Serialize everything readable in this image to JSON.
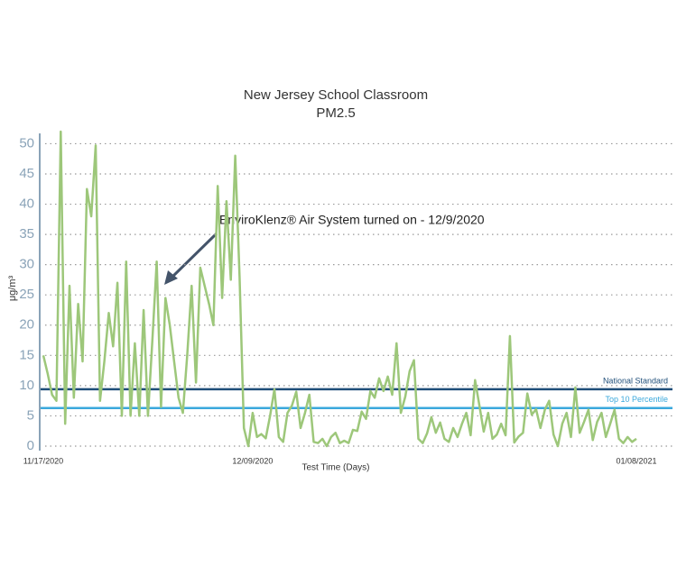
{
  "chart_data": {
    "type": "line",
    "title": "New Jersey School Classroom",
    "subtitle": "PM2.5",
    "x_label": "Test Time (Days)",
    "y_label": "μg/m³",
    "annotation": "EnviroKlenz® Air System turned on - 12/9/2020",
    "categories": [
      "11/17/2020",
      null,
      null,
      null,
      null,
      null,
      null,
      null,
      null,
      null,
      null,
      null,
      null,
      null,
      null,
      null,
      null,
      null,
      null,
      null,
      null,
      null,
      null,
      null,
      null,
      null,
      null,
      null,
      null,
      null,
      null,
      null,
      null,
      null,
      null,
      null,
      null,
      null,
      null,
      null,
      null,
      null,
      null,
      null,
      null,
      null,
      null,
      null,
      "12/09/2020",
      null,
      null,
      null,
      null,
      null,
      null,
      null,
      null,
      null,
      null,
      null,
      null,
      null,
      null,
      null,
      null,
      null,
      null,
      null,
      null,
      null,
      null,
      null,
      null,
      null,
      null,
      null,
      null,
      null,
      null,
      null,
      null,
      null,
      null,
      null,
      null,
      null,
      null,
      null,
      null,
      null,
      null,
      null,
      null,
      null,
      null,
      null,
      null,
      null,
      null,
      null,
      null,
      null,
      null,
      null,
      null,
      null,
      null,
      null,
      null,
      null,
      null,
      null,
      null,
      null,
      null,
      null,
      null,
      null,
      null,
      null,
      null,
      null,
      null,
      null,
      null,
      null,
      null,
      null,
      null,
      null,
      null,
      null,
      null,
      null,
      null,
      null,
      "01/08/2021"
    ],
    "series": [
      {
        "name": "PM2.5",
        "color": "#9dc77a",
        "values": [
          15,
          12,
          8.5,
          7.5,
          52,
          3.7,
          26.5,
          8,
          23.5,
          14,
          42.5,
          38,
          49.7,
          7.5,
          14,
          22,
          16.5,
          27,
          5,
          30.5,
          5,
          17,
          5,
          22.5,
          5,
          17.5,
          30.5,
          6.5,
          24.5,
          20,
          14,
          8,
          5.5,
          15,
          26.5,
          10.5,
          29.5,
          26.5,
          23.5,
          20,
          43,
          24.5,
          40.5,
          27.5,
          48,
          28,
          3,
          0,
          5.5,
          1.5,
          2,
          1.3,
          5,
          9.4,
          1.5,
          0.7,
          5.5,
          6.7,
          9,
          3,
          5.5,
          8.5,
          0.7,
          0.5,
          1.2,
          0,
          1.5,
          2.2,
          0.5,
          0.9,
          0.5,
          2.7,
          2.5,
          5.7,
          4.5,
          9.1,
          8,
          11.2,
          9.1,
          11.5,
          8.5,
          17,
          5.5,
          8.2,
          12.4,
          14.2,
          1.2,
          0.5,
          2.1,
          4.8,
          2.2,
          3.9,
          1.2,
          0.7,
          3,
          1.5,
          3.7,
          5.5,
          1.8,
          10.9,
          6.7,
          2.4,
          5.5,
          1.2,
          1.9,
          3.7,
          1.8,
          18.2,
          0.6,
          1.6,
          2.2,
          8.7,
          5.2,
          6.1,
          3,
          6,
          7.5,
          1.9,
          0,
          3.7,
          5.5,
          1.5,
          9.7,
          2.2,
          4,
          6,
          1,
          4,
          5.5,
          1.5,
          3.7,
          6,
          1.2,
          0.5,
          1.5,
          0.7,
          1.2
        ]
      }
    ],
    "reference_lines": [
      {
        "label": "National Standard",
        "value": 9.4,
        "color": "#1f4e79"
      },
      {
        "label": "Top 10 Percentile",
        "value": 6.3,
        "color": "#3aa8dc"
      }
    ],
    "ylim": [
      0,
      52
    ],
    "yticks": [
      0,
      5,
      10,
      15,
      20,
      25,
      30,
      35,
      40,
      45,
      50
    ],
    "grid": true
  }
}
